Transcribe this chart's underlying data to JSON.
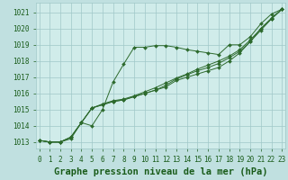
{
  "background_color": "#c0e0e0",
  "plot_bg_color": "#d0ecea",
  "grid_color": "#a0c8c8",
  "line_color": "#2d6a2d",
  "marker_color": "#2d6a2d",
  "xlabel": "Graphe pression niveau de la mer (hPa)",
  "xlabel_color": "#1a5c1a",
  "ylabel_color": "#1a5c1a",
  "ylim": [
    1012.6,
    1021.6
  ],
  "xlim": [
    -0.3,
    23.3
  ],
  "yticks": [
    1013,
    1014,
    1015,
    1016,
    1017,
    1018,
    1019,
    1020,
    1021
  ],
  "xticks": [
    0,
    1,
    2,
    3,
    4,
    5,
    6,
    7,
    8,
    9,
    10,
    11,
    12,
    13,
    14,
    15,
    16,
    17,
    18,
    19,
    20,
    21,
    22,
    23
  ],
  "series": [
    [
      1013.1,
      1013.0,
      1013.0,
      1013.2,
      1014.2,
      1014.0,
      1015.0,
      1016.7,
      1017.8,
      1018.85,
      1018.85,
      1018.95,
      1018.95,
      1018.85,
      1018.7,
      1018.6,
      1018.5,
      1018.4,
      1019.0,
      1019.0,
      1019.5,
      1020.3,
      1020.9,
      1021.2
    ],
    [
      1013.1,
      1013.0,
      1013.0,
      1013.3,
      1014.2,
      1015.1,
      1015.3,
      1015.5,
      1015.6,
      1015.8,
      1016.0,
      1016.2,
      1016.4,
      1016.8,
      1017.0,
      1017.2,
      1017.4,
      1017.6,
      1018.0,
      1018.5,
      1019.2,
      1020.0,
      1020.6,
      1021.2
    ],
    [
      1013.1,
      1013.0,
      1013.0,
      1013.3,
      1014.2,
      1015.1,
      1015.3,
      1015.5,
      1015.6,
      1015.8,
      1016.0,
      1016.2,
      1016.5,
      1016.9,
      1017.15,
      1017.4,
      1017.6,
      1017.85,
      1018.2,
      1018.6,
      1019.2,
      1019.9,
      1020.6,
      1021.2
    ],
    [
      1013.1,
      1013.0,
      1013.0,
      1013.3,
      1014.2,
      1015.1,
      1015.35,
      1015.55,
      1015.65,
      1015.85,
      1016.1,
      1016.35,
      1016.65,
      1016.95,
      1017.2,
      1017.5,
      1017.75,
      1018.0,
      1018.3,
      1018.7,
      1019.3,
      1020.0,
      1020.65,
      1021.2
    ]
  ],
  "tick_fontsize": 5.5,
  "xlabel_fontsize": 7.5,
  "marker_size": 2.0,
  "line_width": 0.7
}
